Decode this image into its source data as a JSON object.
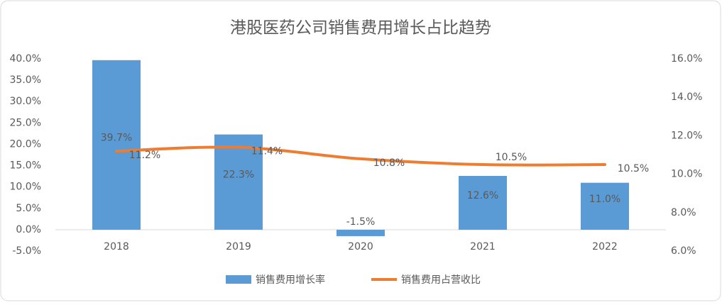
{
  "chart_data": {
    "type": "combo",
    "title": "港股医药公司销售费用增长占比趋势",
    "categories": [
      "2018",
      "2019",
      "2020",
      "2021",
      "2022"
    ],
    "series": [
      {
        "name": "销售费用增长率",
        "type": "bar",
        "color": "#5b9bd5",
        "values": [
          39.7,
          22.3,
          -1.5,
          12.6,
          11.0
        ],
        "value_labels": [
          "39.7%",
          "22.3%",
          "-1.5%",
          "12.6%",
          "11.0%"
        ]
      },
      {
        "name": "销售费用占营收比",
        "type": "line",
        "axis": "y2",
        "color": "#ed7d31",
        "values": [
          11.2,
          11.4,
          10.8,
          10.5,
          10.5
        ],
        "value_labels": [
          "11.2%",
          "11.4%",
          "10.8%",
          "10.5%",
          "10.5%"
        ]
      }
    ],
    "ylim": [
      -5,
      40
    ],
    "yticks": [
      {
        "value": -5,
        "label": "-5.0%"
      },
      {
        "value": 0,
        "label": "0.0%"
      },
      {
        "value": 5,
        "label": "5.0%"
      },
      {
        "value": 10,
        "label": "10.0%"
      },
      {
        "value": 15,
        "label": "15.0%"
      },
      {
        "value": 20,
        "label": "20.0%"
      },
      {
        "value": 25,
        "label": "25.0%"
      },
      {
        "value": 30,
        "label": "30.0%"
      },
      {
        "value": 35,
        "label": "35.0%"
      },
      {
        "value": 40,
        "label": "40.0%"
      }
    ],
    "y2lim": [
      6,
      16
    ],
    "y2ticks": [
      {
        "value": 6,
        "label": "6.0%"
      },
      {
        "value": 8,
        "label": "8.0%"
      },
      {
        "value": 10,
        "label": "10.0%"
      },
      {
        "value": 12,
        "label": "12.0%"
      },
      {
        "value": 14,
        "label": "14.0%"
      },
      {
        "value": 16,
        "label": "16.0%"
      }
    ],
    "legend": "bottom"
  }
}
